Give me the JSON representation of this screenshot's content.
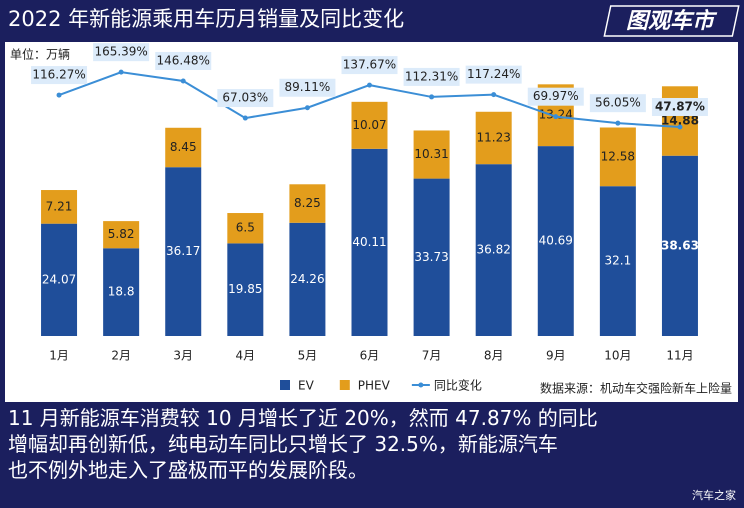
{
  "chart_data": {
    "type": "bar",
    "title": "2022 年新能源乘用车历月销量及同比变化",
    "unit_label": "单位：万辆",
    "source": "数据来源：机动车交强险新车上险量",
    "categories": [
      "1月",
      "2月",
      "3月",
      "4月",
      "5月",
      "6月",
      "7月",
      "8月",
      "9月",
      "10月",
      "11月"
    ],
    "stacked": true,
    "series": [
      {
        "name": "EV",
        "color": "#1f4e9a",
        "values": [
          24.07,
          18.8,
          36.17,
          19.85,
          24.26,
          40.11,
          33.73,
          36.82,
          40.69,
          32.1,
          38.63
        ]
      },
      {
        "name": "PHEV",
        "color": "#e39d1c",
        "values": [
          7.21,
          5.82,
          8.45,
          6.5,
          8.25,
          10.07,
          10.31,
          11.23,
          13.24,
          12.58,
          14.88
        ]
      },
      {
        "name": "同比变化",
        "type": "line",
        "axis": "y2",
        "color": "#3b8ed6",
        "values": [
          116.27,
          165.39,
          146.48,
          67.03,
          89.11,
          137.67,
          112.31,
          117.24,
          69.97,
          56.05,
          47.87
        ],
        "value_labels": [
          "116.27%",
          "165.39%",
          "146.48%",
          "67.03%",
          "89.11%",
          "137.67%",
          "112.31%",
          "117.24%",
          "69.97%",
          "56.05%",
          "47.87%"
        ]
      }
    ],
    "ylim": [
      0,
      63
    ],
    "y2lim": [
      -400,
      230
    ],
    "legend": "bottom"
  },
  "logo": "图观车市",
  "caption": [
    "11 月新能源车消费较 10 月增长了近 20%，然而 47.87% 的同比",
    "增幅却再创新低，纯电动车同比只增长了 32.5%，新能源汽车",
    "也不例外地走入了盛极而平的发展阶段。"
  ],
  "watermark": "汽车之家"
}
